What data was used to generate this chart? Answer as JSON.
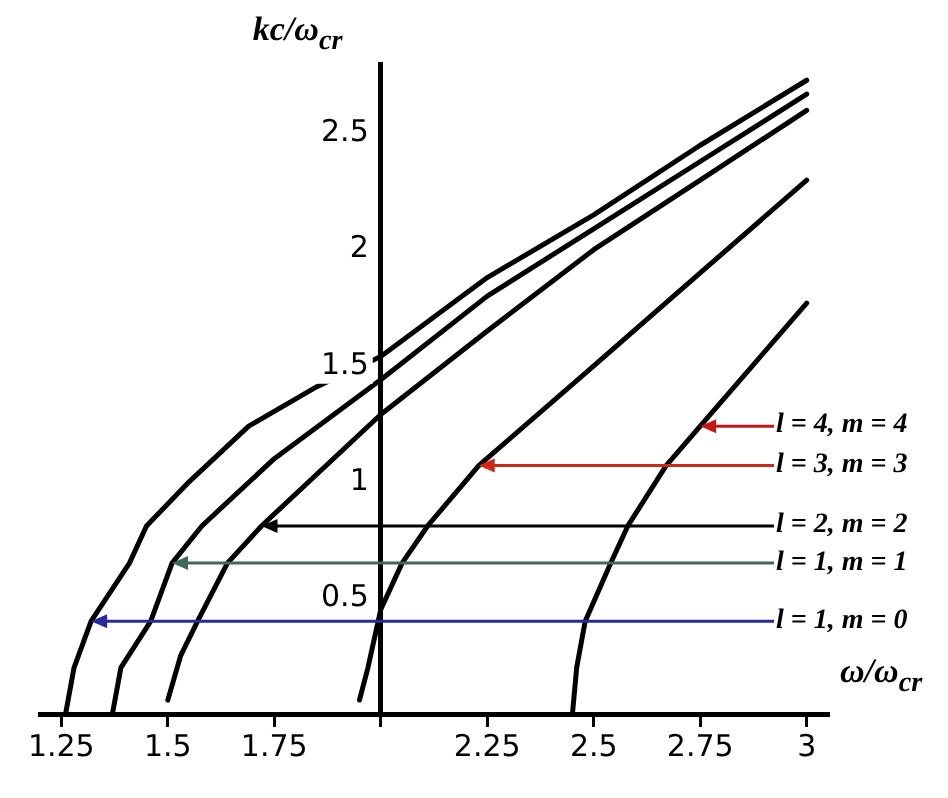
{
  "chart_data": {
    "type": "line",
    "xlabel": "ω/ω$_{cr}$",
    "ylabel": "kc/ω$_{cr}$",
    "xlim": [
      1.2,
      3.05
    ],
    "ylim": [
      0,
      2.8
    ],
    "xticks": [
      1.25,
      1.5,
      1.75,
      {
        "value": 2,
        "label": null
      },
      2.25,
      2.5,
      2.75,
      3
    ],
    "yticks": [
      0.5,
      1,
      1.5,
      2,
      2.5
    ],
    "grid": false,
    "marker": "none",
    "line_style": "solid",
    "series": [
      {
        "color": "#000000",
        "x": [
          1.26,
          1.28,
          1.32,
          1.41,
          1.45,
          1.55,
          1.69,
          1.85,
          2,
          2.25,
          2.5,
          2.75,
          3
        ],
        "values": [
          0,
          0.2,
          0.4,
          0.65,
          0.81,
          1.0,
          1.24,
          1.41,
          1.54,
          1.88,
          2.15,
          2.45,
          2.73
        ]
      },
      {
        "color": "#000000",
        "x": [
          1.37,
          1.39,
          1.46,
          1.51,
          1.58,
          1.75,
          2,
          2.25,
          2.5,
          2.75,
          3
        ],
        "values": [
          0,
          0.2,
          0.4,
          0.65,
          0.81,
          1.1,
          1.44,
          1.8,
          2.09,
          2.38,
          2.67
        ]
      },
      {
        "color": "#000000",
        "x": [
          1.5,
          1.53,
          1.57,
          1.64,
          1.72,
          2,
          2.25,
          2.5,
          2.75,
          3
        ],
        "values": [
          0.06,
          0.25,
          0.4,
          0.65,
          0.81,
          1.29,
          1.65,
          2,
          2.3,
          2.6
        ]
      },
      {
        "color": "#000000",
        "x": [
          1.95,
          1.97,
          2,
          2.05,
          2.11,
          2.23,
          2.5,
          2.75,
          3
        ],
        "values": [
          0.06,
          0.2,
          0.45,
          0.65,
          0.81,
          1.07,
          1.5,
          1.9,
          2.3
        ]
      },
      {
        "color": "#000000",
        "x": [
          2.45,
          2.46,
          2.48,
          2.54,
          2.58,
          2.67,
          2.75,
          3
        ],
        "values": [
          0,
          0.2,
          0.4,
          0.65,
          0.81,
          1.07,
          1.24,
          1.77
        ]
      }
    ],
    "annotations": [
      {
        "text": "l = 1, m = 0",
        "x": 1.32,
        "y": 0.4
      },
      {
        "text": "l = 1, m = 1",
        "x": 1.51,
        "y": 0.65
      },
      {
        "text": "l = 2, m = 2",
        "x": 1.72,
        "y": 0.81
      },
      {
        "text": "l = 3, m = 3",
        "x": 2.23,
        "y": 1.07
      },
      {
        "text": "l = 4, m = 4",
        "x": 2.75,
        "y": 1.24
      }
    ]
  }
}
